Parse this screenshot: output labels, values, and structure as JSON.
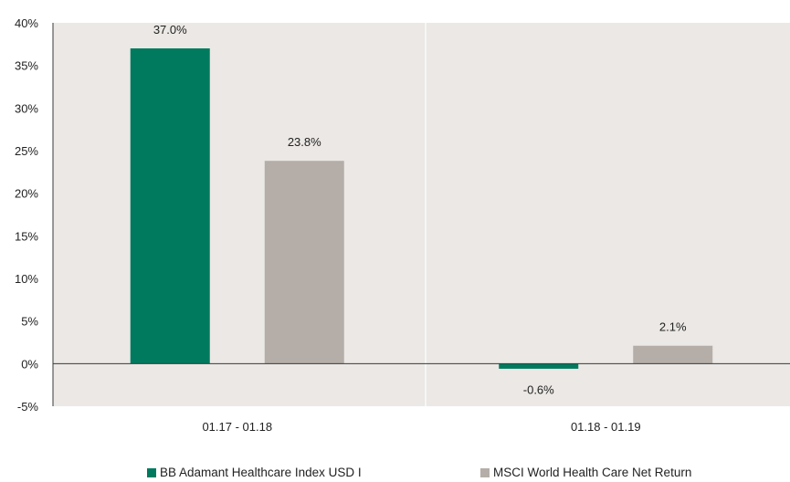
{
  "chart_data": {
    "type": "bar",
    "categories": [
      "01.17 - 01.18",
      "01.18 - 01.19"
    ],
    "series": [
      {
        "name": "BB Adamant Healthcare Index USD I",
        "values": [
          37.0,
          -0.6
        ],
        "labels": [
          "37.0%",
          "-0.6%"
        ],
        "color": "#007a5e"
      },
      {
        "name": "MSCI World Health Care Net Return",
        "values": [
          23.8,
          2.1
        ],
        "labels": [
          "23.8%",
          "2.1%"
        ],
        "color": "#b5aea8"
      }
    ],
    "yticks": [
      {
        "value": 40,
        "label": "40%"
      },
      {
        "value": 35,
        "label": "35%"
      },
      {
        "value": 30,
        "label": "30%"
      },
      {
        "value": 25,
        "label": "25%"
      },
      {
        "value": 20,
        "label": "20%"
      },
      {
        "value": 15,
        "label": "15%"
      },
      {
        "value": 10,
        "label": "10%"
      },
      {
        "value": 5,
        "label": "5%"
      },
      {
        "value": 0,
        "label": "0%"
      },
      {
        "value": -5,
        "label": "-5%"
      }
    ],
    "ylim": [
      -5,
      40
    ],
    "grid": false,
    "legend_position": "bottom",
    "plot_background": "#ebe8e5"
  }
}
